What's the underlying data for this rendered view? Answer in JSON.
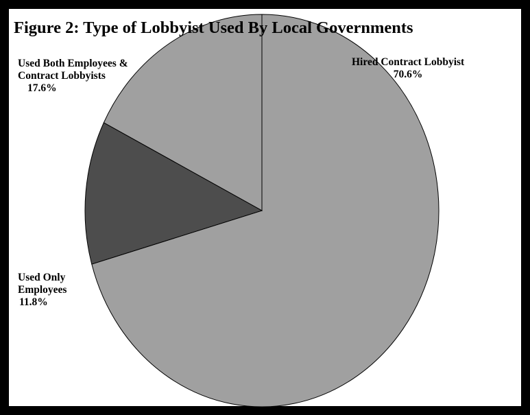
{
  "chart_data": {
    "type": "pie",
    "title": "Figure 2:  Type of Lobbyist Used By Local Governments",
    "slices": [
      {
        "label_lines": [
          "Hired Contract Lobbyist"
        ],
        "value": 70.6,
        "value_label": "70.6%",
        "color": "#a0a0a0"
      },
      {
        "label_lines": [
          "Used Only",
          "Employees"
        ],
        "value": 11.8,
        "value_label": "11.8%",
        "color": "#4d4d4d"
      },
      {
        "label_lines": [
          "Used Both Employees &",
          "Contract Lobbyists"
        ],
        "value": 17.6,
        "value_label": "17.6%",
        "color": "#a0a0a0"
      }
    ],
    "legend": "none"
  }
}
